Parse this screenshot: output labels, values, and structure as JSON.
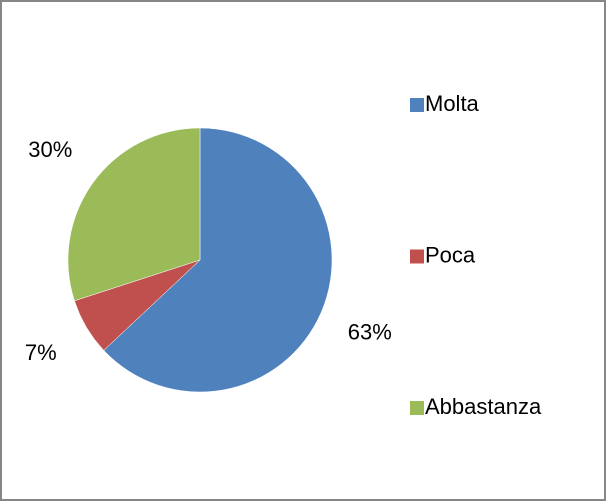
{
  "chart_data": {
    "type": "pie",
    "categories": [
      "Molta",
      "Poca",
      "Abbastanza"
    ],
    "values": [
      63,
      7,
      30
    ],
    "value_labels": [
      "63%",
      "7%",
      "30%"
    ],
    "colors": [
      "#4f81bd",
      "#c0504d",
      "#9bbb59"
    ],
    "legend": "right"
  }
}
